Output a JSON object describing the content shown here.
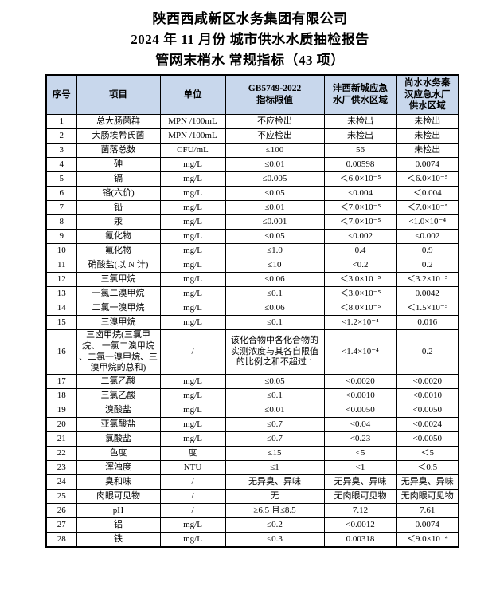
{
  "title": {
    "line1": "陕西西咸新区水务集团有限公司",
    "line2": "2024 年 11 月份  城市供水水质抽检报告",
    "line3": "管网末梢水  常规指标（43 项）"
  },
  "table": {
    "columns": [
      {
        "id": "no",
        "label": "序号"
      },
      {
        "id": "item",
        "label": "项目"
      },
      {
        "id": "unit",
        "label": "单位"
      },
      {
        "id": "limit",
        "label": "GB5749-2022\n指标限值"
      },
      {
        "id": "fengxi",
        "label": "沣西新城应急\n水厂供水区域"
      },
      {
        "id": "shangshui",
        "label": "尚水水务秦\n汉应急水厂\n供水区域"
      }
    ],
    "rows": [
      [
        "1",
        "总大肠菌群",
        "MPN /100mL",
        "不应检出",
        "未检出",
        "未检出"
      ],
      [
        "2",
        "大肠埃希氏菌",
        "MPN /100mL",
        "不应检出",
        "未检出",
        "未检出"
      ],
      [
        "3",
        "菌落总数",
        "CFU/mL",
        "≤100",
        "56",
        "未检出"
      ],
      [
        "4",
        "砷",
        "mg/L",
        "≤0.01",
        "0.00598",
        "0.0074"
      ],
      [
        "5",
        "镉",
        "mg/L",
        "≤0.005",
        "＜6.0×10⁻⁵",
        "＜6.0×10⁻⁵"
      ],
      [
        "6",
        "铬(六价)",
        "mg/L",
        "≤0.05",
        "<0.004",
        "＜0.004"
      ],
      [
        "7",
        "铅",
        "mg/L",
        "≤0.01",
        "＜7.0×10⁻⁵",
        "＜7.0×10⁻⁵"
      ],
      [
        "8",
        "汞",
        "mg/L",
        "≤0.001",
        "＜7.0×10⁻⁵",
        "<1.0×10⁻⁴"
      ],
      [
        "9",
        "氰化物",
        "mg/L",
        "≤0.05",
        "<0.002",
        "<0.002"
      ],
      [
        "10",
        "氟化物",
        "mg/L",
        "≤1.0",
        "0.4",
        "0.9"
      ],
      [
        "11",
        "硝酸盐(以 N 计)",
        "mg/L",
        "≤10",
        "<0.2",
        "0.2"
      ],
      [
        "12",
        "三氯甲烷",
        "mg/L",
        "≤0.06",
        "＜3.0×10⁻⁵",
        "＜3.2×10⁻⁵"
      ],
      [
        "13",
        "一氯二溴甲烷",
        "mg/L",
        "≤0.1",
        "＜3.0×10⁻⁵",
        "0.0042"
      ],
      [
        "14",
        "二氯一溴甲烷",
        "mg/L",
        "≤0.06",
        "＜8.0×10⁻⁵",
        "＜1.5×10⁻⁵"
      ],
      [
        "15",
        "三溴甲烷",
        "mg/L",
        "≤0.1",
        "<1.2×10⁻⁴",
        "0.016"
      ],
      [
        "16",
        "三卤甲烷(三氯甲烷、 一氯二溴甲烷 、二氯一溴甲烷、三溴甲烷的总和)",
        "/",
        "该化合物中各化合物的实测浓度与其各自限值的比例之和不超过 1",
        "<1.4×10⁻⁴",
        "0.2"
      ],
      [
        "17",
        "二氯乙酸",
        "mg/L",
        "≤0.05",
        "<0.0020",
        "<0.0020"
      ],
      [
        "18",
        "三氯乙酸",
        "mg/L",
        "≤0.1",
        "<0.0010",
        "<0.0010"
      ],
      [
        "19",
        "溴酸盐",
        "mg/L",
        "≤0.01",
        "<0.0050",
        "<0.0050"
      ],
      [
        "20",
        "亚氯酸盐",
        "mg/L",
        "≤0.7",
        "<0.04",
        "<0.0024"
      ],
      [
        "21",
        "氯酸盐",
        "mg/L",
        "≤0.7",
        "<0.23",
        "<0.0050"
      ],
      [
        "22",
        "色度",
        "度",
        "≤15",
        "<5",
        "＜5"
      ],
      [
        "23",
        "浑浊度",
        "NTU",
        "≤1",
        "<1",
        "＜0.5"
      ],
      [
        "24",
        "臭和味",
        "/",
        "无异臭、异味",
        "无异臭、异味",
        "无异臭、异味"
      ],
      [
        "25",
        "肉眼可见物",
        "/",
        "无",
        "无肉眼可见物",
        "无肉眼可见物"
      ],
      [
        "26",
        "pH",
        "/",
        "≥6.5 且≤8.5",
        "7.12",
        "7.61"
      ],
      [
        "27",
        "铝",
        "mg/L",
        "≤0.2",
        "<0.0012",
        "0.0074"
      ],
      [
        "28",
        "铁",
        "mg/L",
        "≤0.3",
        "0.00318",
        "＜9.0×10⁻⁴"
      ]
    ]
  }
}
